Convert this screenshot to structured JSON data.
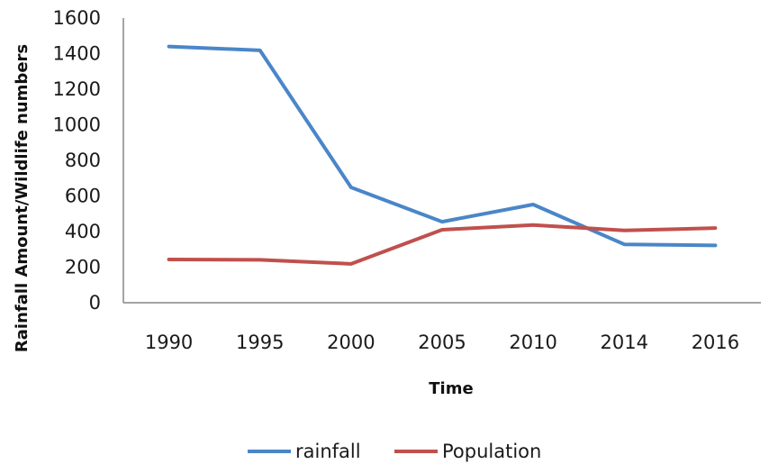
{
  "chart_data": {
    "type": "line",
    "categories": [
      "1990",
      "1995",
      "2000",
      "2005",
      "2010",
      "2014",
      "2016"
    ],
    "series": [
      {
        "name": "rainfall",
        "values": [
          1440,
          1418,
          648,
          455,
          552,
          328,
          322
        ],
        "color": "#4A86C8"
      },
      {
        "name": "Population",
        "values": [
          243,
          241,
          218,
          410,
          437,
          406,
          420
        ],
        "color": "#C0504D"
      }
    ],
    "title": "",
    "xlabel": "Time",
    "ylabel": "Rainfall Amount/Wildlife numbers",
    "ylim": [
      0,
      1600
    ],
    "yticks": [
      0,
      200,
      400,
      600,
      800,
      1000,
      1200,
      1400,
      1600
    ],
    "grid": false,
    "legend_position": "bottom",
    "axis_color": "#868686"
  }
}
